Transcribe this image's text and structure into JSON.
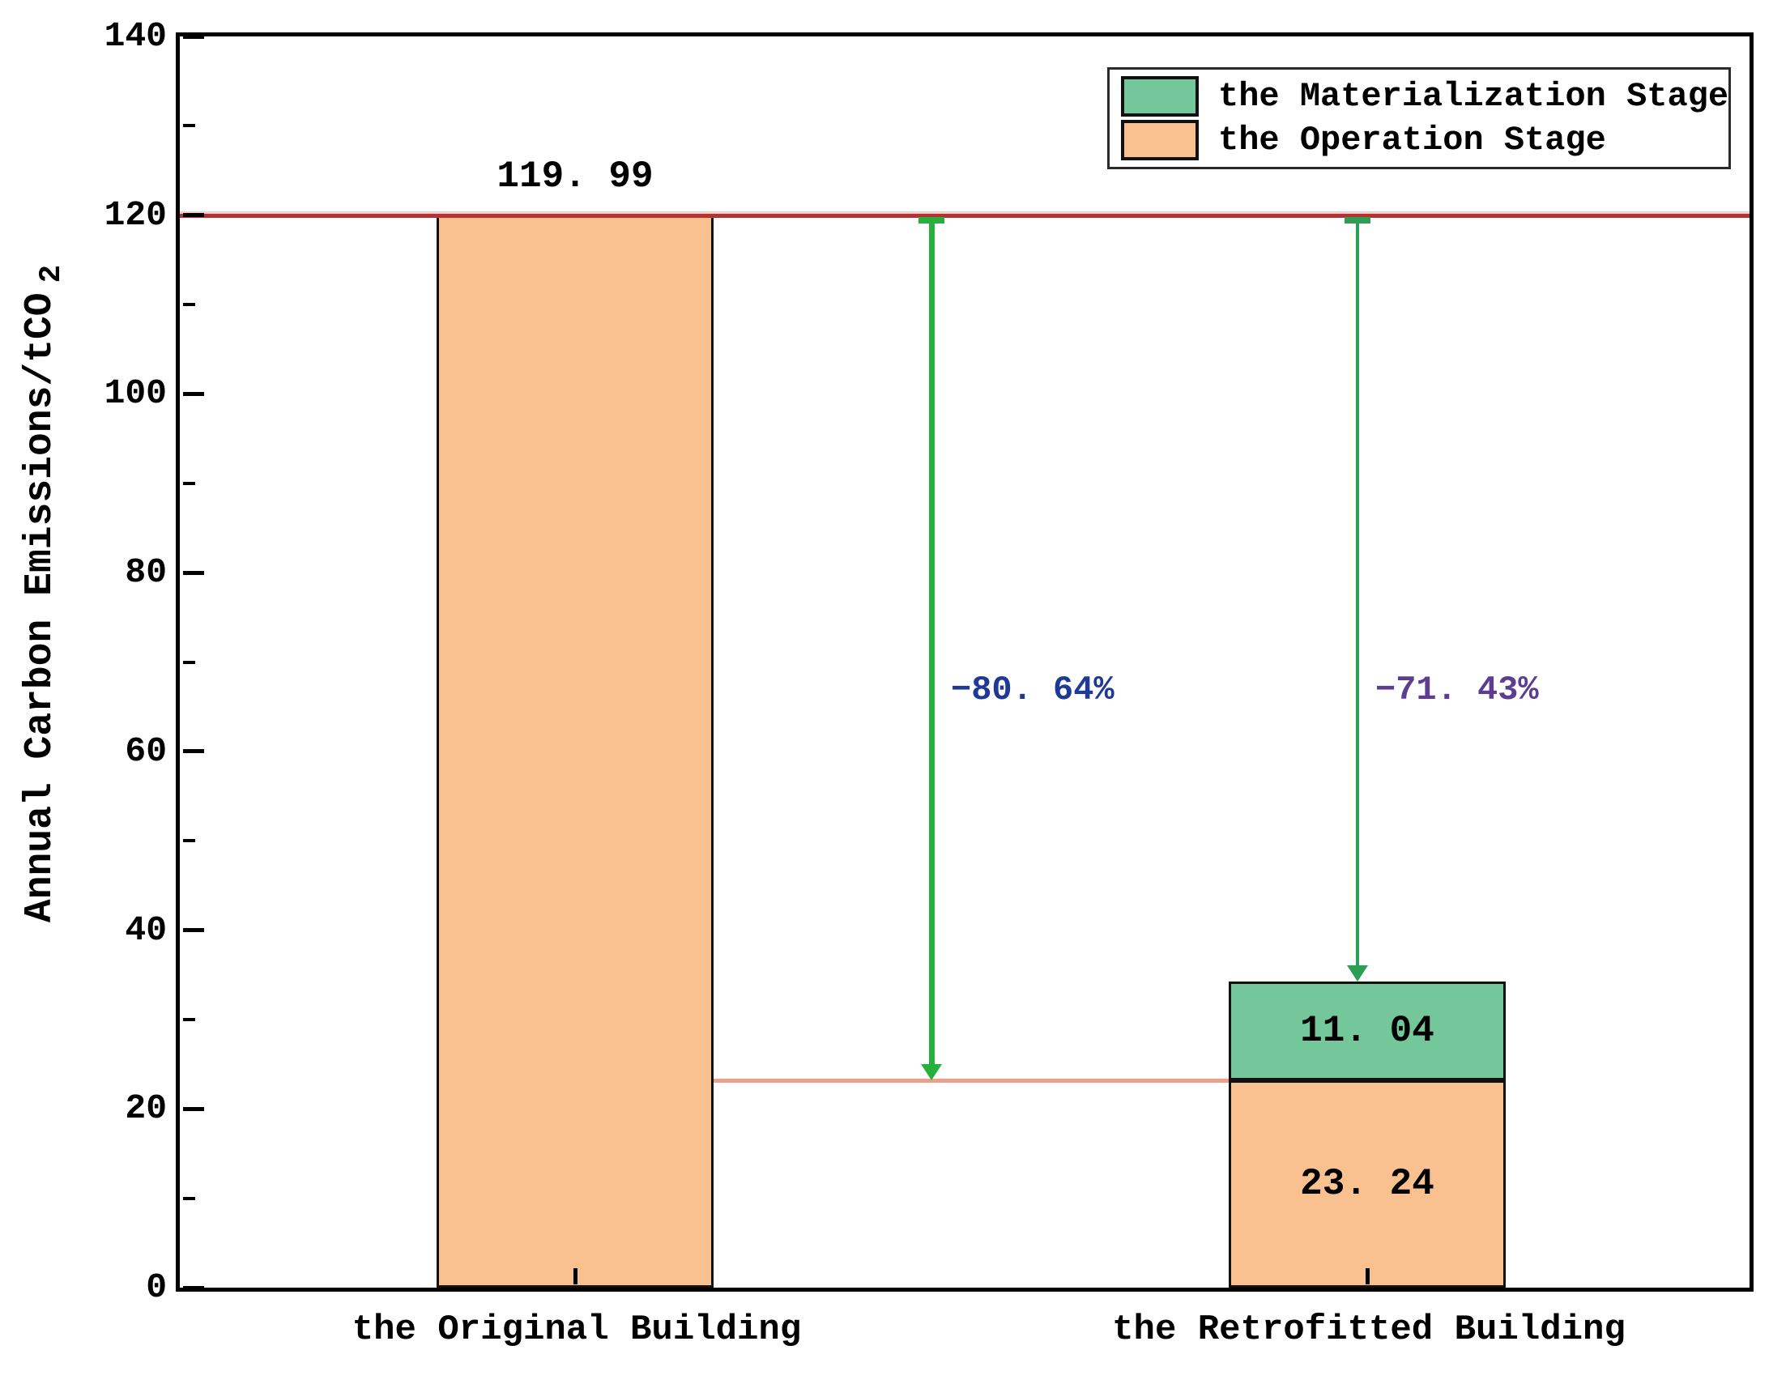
{
  "page": {
    "background": "#ffffff"
  },
  "chart_data": {
    "type": "bar",
    "stacked": true,
    "title": "",
    "ylabel": "Annual Carbon Emissions/tCO",
    "ylabel_sub": "2",
    "xlabel": "",
    "ylim": [
      0,
      140
    ],
    "yticks": [
      0,
      20,
      40,
      60,
      80,
      100,
      120,
      140
    ],
    "minor_yticks": [
      10,
      30,
      50,
      70,
      90,
      110,
      130
    ],
    "grid": false,
    "categories": [
      "the Original Building",
      "the Retrofitted Building"
    ],
    "series": [
      {
        "name": "the Materialization Stage",
        "color": "#74C79A",
        "edge_color": "#111111",
        "values": [
          0,
          11.04
        ]
      },
      {
        "name": "the Operation Stage",
        "color": "#F9C190",
        "edge_color": "#111111",
        "values": [
          119.99,
          23.24
        ]
      }
    ],
    "totals": [
      119.99,
      34.28
    ],
    "bar_labels": {
      "original_total": "119. 99",
      "retrofit_materialization": "11. 04",
      "retrofit_operation": "23. 24"
    },
    "reference_lines": [
      {
        "value": 119.99,
        "color": "#B43232",
        "halo_color": "#EFA5A0",
        "extent": "full-width"
      },
      {
        "value": 23.24,
        "color": "#E9A18C",
        "halo_color": "",
        "extent": "between-bars"
      }
    ],
    "annotations": [
      {
        "text": "−80. 64%",
        "color": "#1E3A96",
        "from": 119.99,
        "to": 23.24,
        "arrow_color": "#27B13C"
      },
      {
        "text": "−71. 43%",
        "color": "#5C3D92",
        "from": 119.99,
        "to": 34.28,
        "arrow_color": "#2E9E55"
      }
    ],
    "legend": {
      "position": "top-right",
      "border_color": "#2A2A2A"
    },
    "axis_color": "#000000"
  }
}
